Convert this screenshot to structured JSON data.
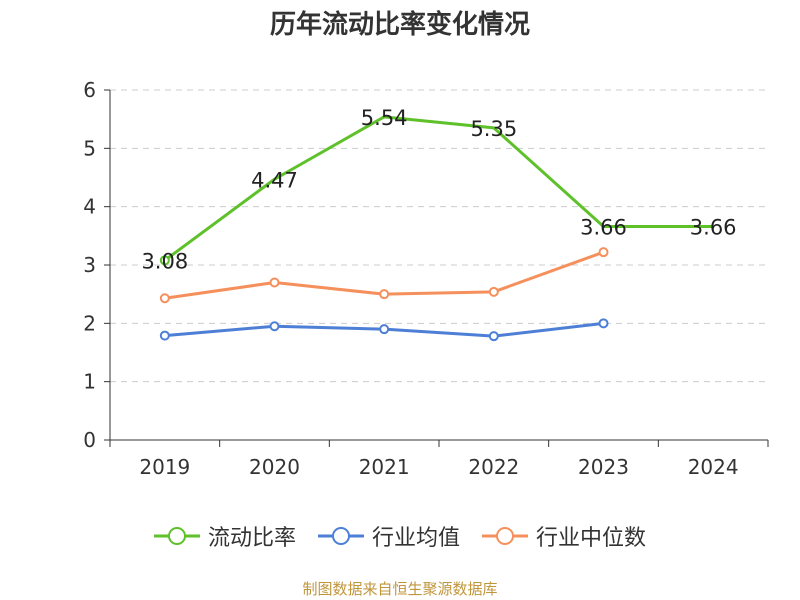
{
  "chart_data": {
    "type": "line",
    "title": "历年流动比率变化情况",
    "categories": [
      "2019",
      "2020",
      "2021",
      "2022",
      "2023",
      "2024"
    ],
    "yticks": [
      0,
      1,
      2,
      3,
      4,
      5,
      6
    ],
    "ylim": [
      0,
      6
    ],
    "grid": true,
    "legend_position": "bottom",
    "series": [
      {
        "name": "流动比率",
        "color": "#5ec12a",
        "values": [
          3.08,
          4.47,
          5.54,
          5.35,
          3.66,
          3.66
        ],
        "labels": [
          "3.08",
          "4.47",
          "5.54",
          "5.35",
          "3.66",
          "3.66"
        ],
        "markers": [
          true,
          false,
          false,
          false,
          false,
          false
        ]
      },
      {
        "name": "行业均值",
        "color": "#4e7fd6",
        "values": [
          1.79,
          1.95,
          1.9,
          1.78,
          2.0,
          null
        ]
      },
      {
        "name": "行业中位数",
        "color": "#f5905c",
        "values": [
          2.43,
          2.7,
          2.5,
          2.54,
          3.22,
          null
        ]
      }
    ],
    "source": "制图数据来自恒生聚源数据库"
  }
}
